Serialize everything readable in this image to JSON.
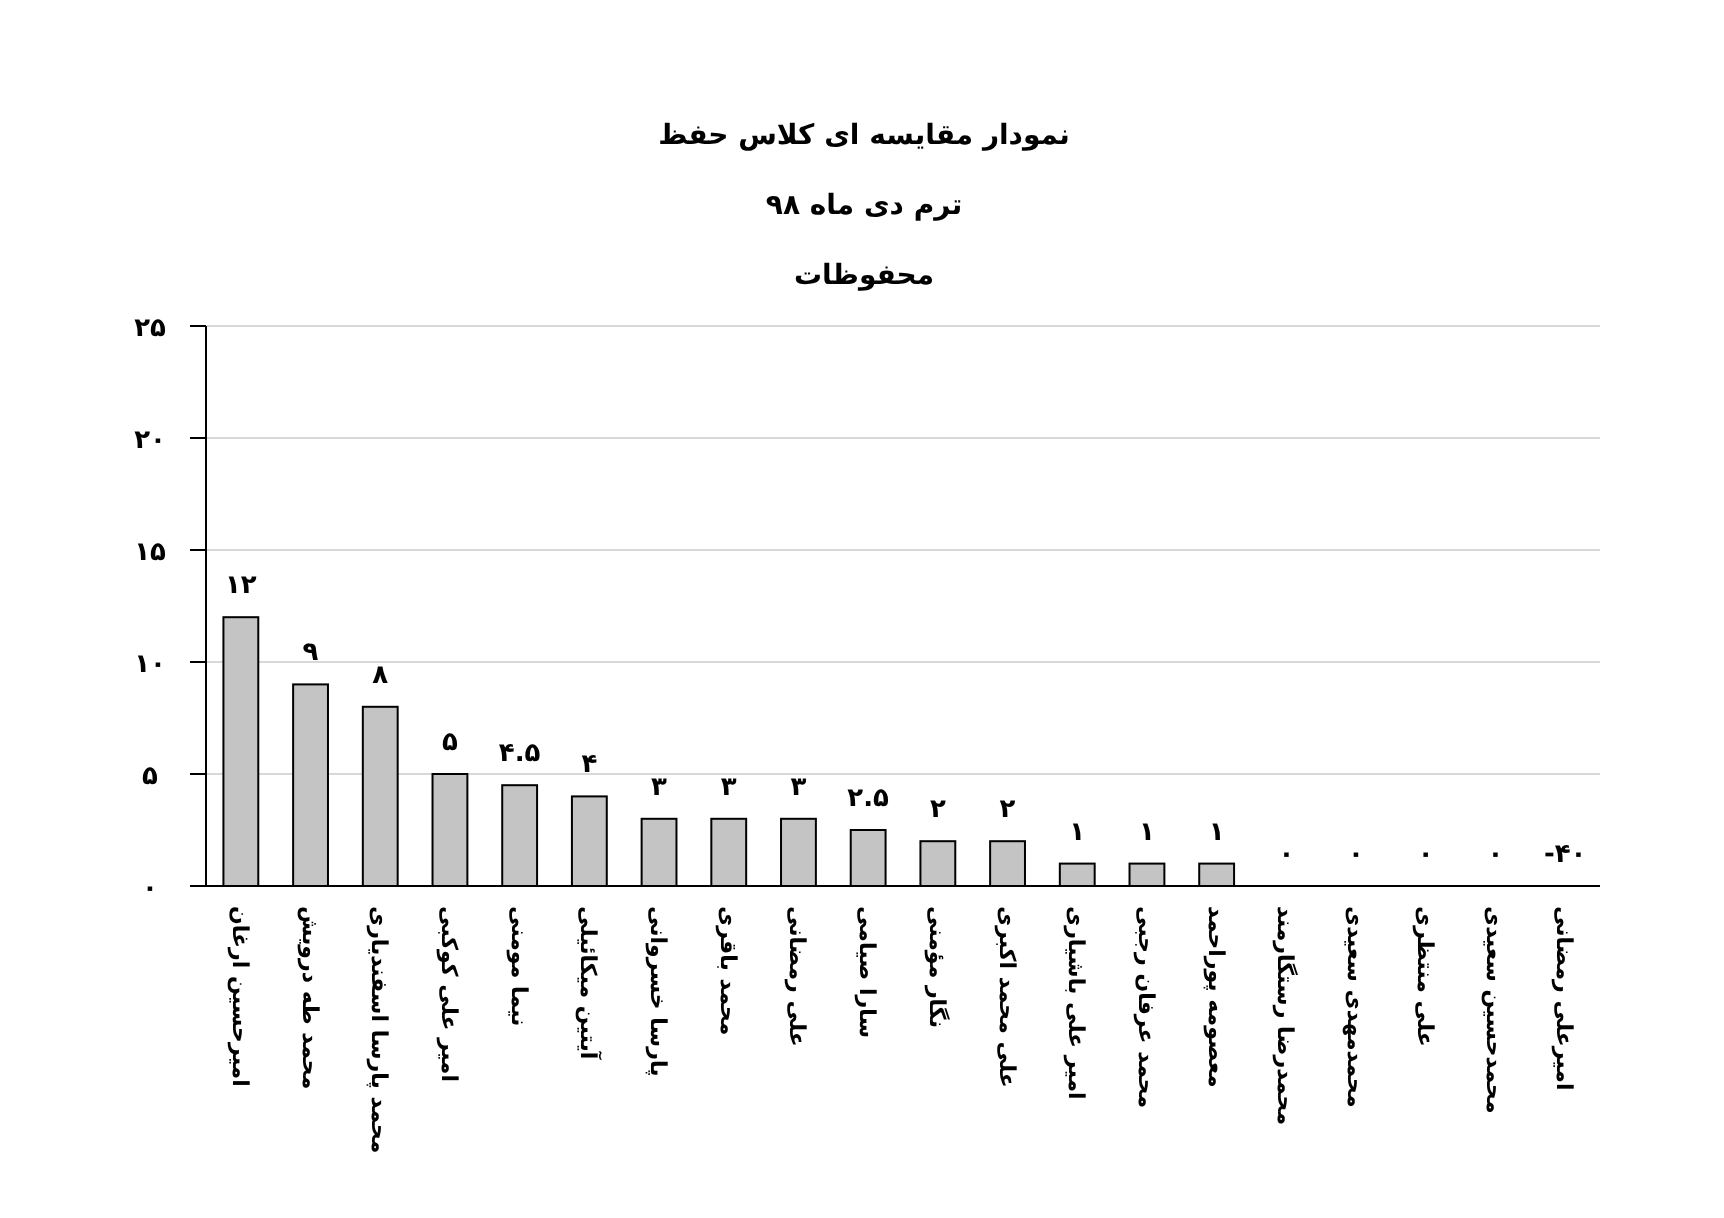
{
  "chart_data": {
    "type": "bar",
    "title": "نمودار مقایسه ای کلاس حفظ",
    "subtitle": "ترم دی ماه ۹۸",
    "ylabel": "محفوظات",
    "categories": [
      "امیرحسین ارغان",
      "محمد طه درویش",
      "محمد پارسا اسفندیاری",
      "امیر علی کوکبی",
      "نیما مومنی",
      "آیتین میکائیلی",
      "پارسا خسروانی",
      "محمد باقری",
      "علی رمضانی",
      "سارا صیامی",
      "نگار مؤمنی",
      "علی محمد اکبری",
      "امیر علی باشیاری",
      "محمد عرفان رجبی",
      "معصومه پوراحمد",
      "محمدرضا رستگارمند",
      "محمدمهدی سعیدی",
      "علی منتظری",
      "محمدحسین سعیدی",
      "امیرعلی رمضانی"
    ],
    "values": [
      12,
      9,
      8,
      5,
      4.5,
      4,
      3,
      3,
      3,
      2.5,
      2,
      2,
      1,
      1,
      1,
      0,
      0,
      0,
      0,
      null
    ],
    "value_labels": [
      "۱۲",
      "۹",
      "۸",
      "۵",
      "۴.۵",
      "۴",
      "۳",
      "۳",
      "۳",
      "۲.۵",
      "۲",
      "۲",
      "۱",
      "۱",
      "۱",
      "۰",
      "۰",
      "۰",
      "۰",
      "-۴۰"
    ],
    "color": "#c4c4c4",
    "ylim": [
      0,
      25
    ],
    "yticks": [
      {
        "value": 0,
        "label": "۰"
      },
      {
        "value": 5,
        "label": "۵"
      },
      {
        "value": 10,
        "label": "۱۰"
      },
      {
        "value": 15,
        "label": "۱۵"
      },
      {
        "value": 20,
        "label": "۲۰"
      },
      {
        "value": 25,
        "label": "۲۵"
      }
    ],
    "grid": "y"
  }
}
